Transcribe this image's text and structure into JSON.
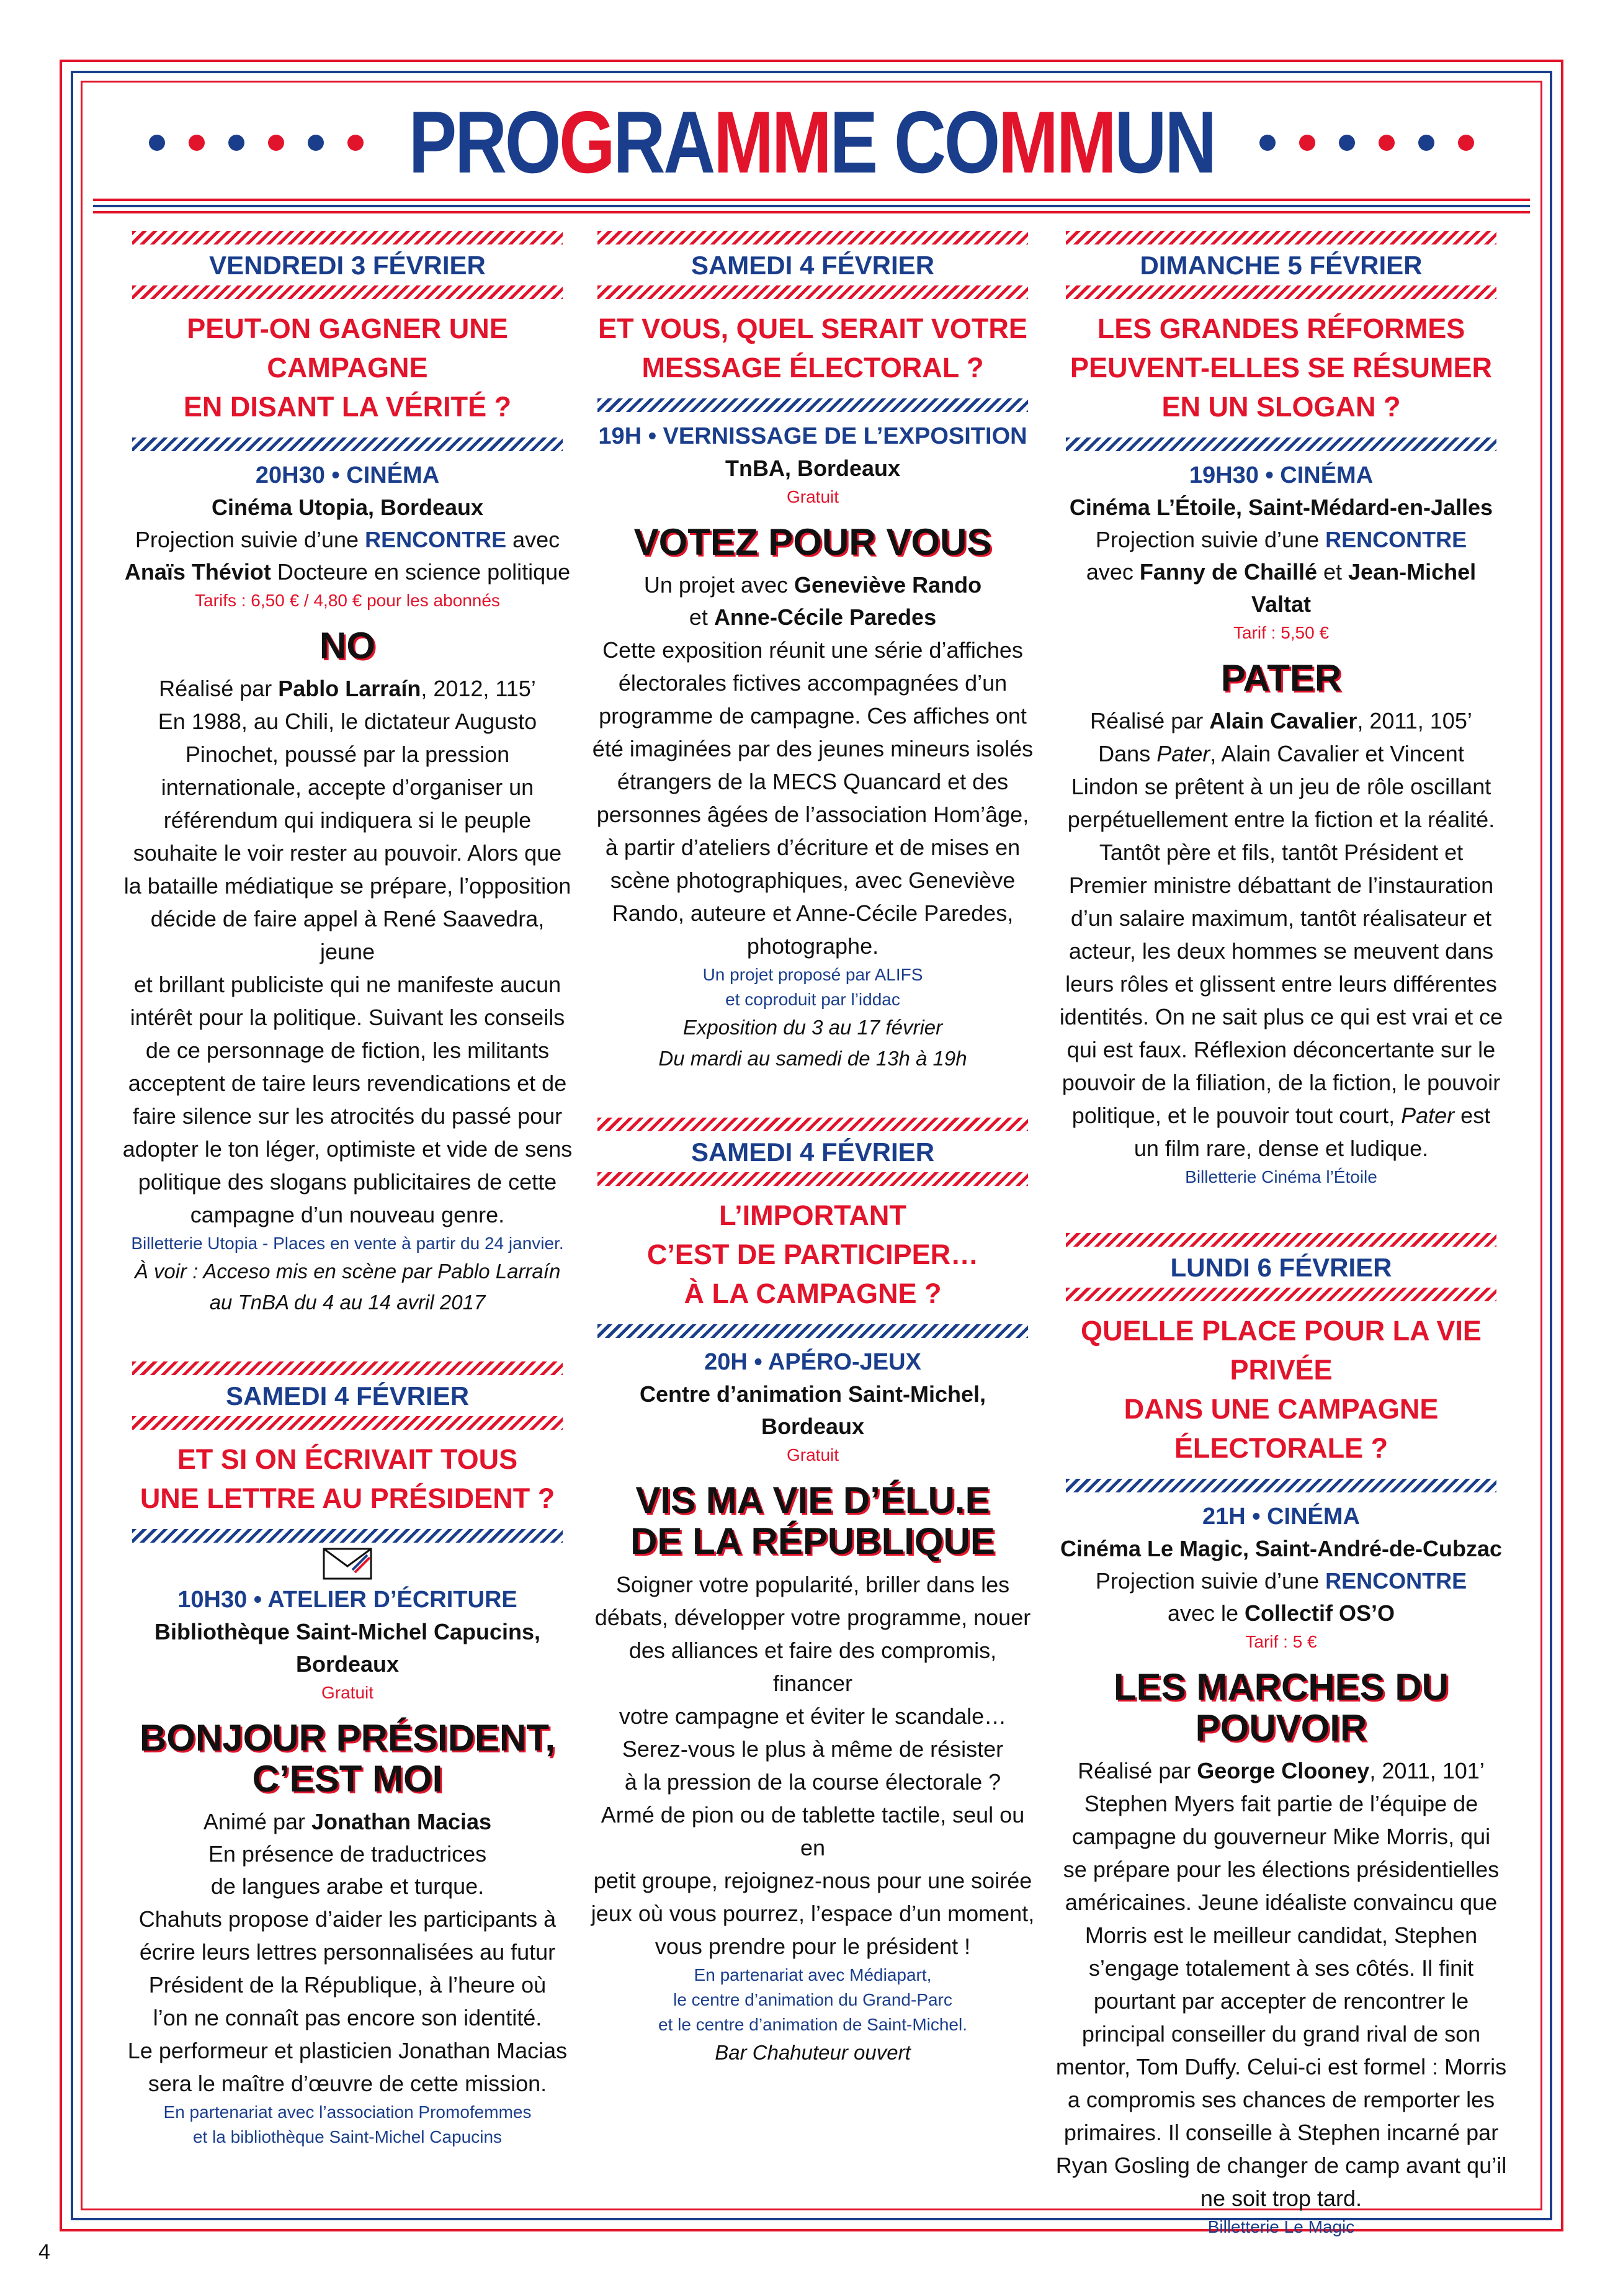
{
  "title": {
    "p1": "PRO",
    "p2": "G",
    "p3": "RA",
    "p4": "MM",
    "p5": "E ",
    "p6": "CO",
    "p7": "MM",
    "p8": "UN"
  },
  "page_number": "4",
  "col1": {
    "e1": {
      "day": "VENDREDI 3 FÉVRIER",
      "question_l1": "PEUT-ON GAGNER UNE CAMPAGNE",
      "question_l2": "EN DISANT LA VÉRITÉ ?",
      "time": "20H30 • CINÉMA",
      "place": "Cinéma Utopia, Bordeaux",
      "l1a": "Projection suivie d’une ",
      "l1b": "RENCONTRE",
      "l1c": " avec",
      "l2a": "Anaïs Théviot",
      "l2b": " Docteure en science politique",
      "tarif": "Tarifs : 6,50 € / 4,80 € pour les abonnés",
      "film": "NO",
      "real_a": "Réalisé par ",
      "real_b": "Pablo Larraín",
      "real_c": ", 2012, 115’",
      "body": [
        "En 1988, au Chili, le dictateur Augusto",
        "Pinochet, poussé par la pression",
        "internationale, accepte d’organiser un",
        "référendum qui indiquera si le peuple",
        "souhaite le voir rester au pouvoir. Alors que",
        "la bataille médiatique se prépare, l’opposition",
        "décide de faire appel à René Saavedra, jeune",
        "et brillant publiciste qui ne manifeste aucun",
        "intérêt pour la politique. Suivant les conseils",
        "de ce personnage de fiction, les militants",
        "acceptent de taire leurs revendications et de",
        "faire silence sur les atrocités du passé pour",
        "adopter le ton léger, optimiste et vide de sens",
        "politique des slogans publicitaires de cette",
        "campagne d’un nouveau genre."
      ],
      "billet": "Billetterie Utopia - Places en vente à partir du 24 janvier.",
      "voir1": "À voir : Acceso mis en scène par Pablo Larraín",
      "voir2": "au TnBA du 4 au 14 avril 2017"
    },
    "e2": {
      "day": "SAMEDI 4 FÉVRIER",
      "question_l1": "ET SI ON ÉCRIVAIT TOUS",
      "question_l2": "UNE LETTRE AU PRÉSIDENT ?",
      "envelope_icon": "envelope-icon",
      "time": "10H30 • ATELIER D’ÉCRITURE",
      "place1": "Bibliothèque Saint-Michel Capucins,",
      "place2": "Bordeaux",
      "tarif": "Gratuit",
      "film1": "BONJOUR PRÉSIDENT,",
      "film2": "C’EST MOI",
      "anim_a": "Animé par ",
      "anim_b": "Jonathan Macias",
      "pres1": "En présence de traductrices",
      "pres2": "de langues arabe et turque.",
      "body": [
        "Chahuts propose d’aider les participants à",
        "écrire leurs lettres personnalisées au futur",
        "Président de la République, à l’heure où",
        "l’on ne connaît pas encore son identité.",
        "Le performeur et plasticien Jonathan Macias",
        "sera le maître d’œuvre de cette mission."
      ],
      "part1": "En partenariat avec l’association Promofemmes",
      "part2": "et la bibliothèque Saint-Michel Capucins"
    }
  },
  "col2": {
    "e1": {
      "day": "SAMEDI 4 FÉVRIER",
      "question_l1": "ET VOUS, QUEL SERAIT VOTRE",
      "question_l2": "MESSAGE ÉLECTORAL ?",
      "time": "19H • VERNISSAGE DE L’EXPOSITION",
      "place": "TnBA, Bordeaux",
      "tarif": "Gratuit",
      "film": "VOTEZ POUR VOUS",
      "proj_a": "Un projet avec ",
      "proj_b": "Geneviève Rando",
      "proj2_a": "et ",
      "proj2_b": "Anne-Cécile Paredes",
      "body": [
        "Cette exposition réunit une série d’affiches",
        "électorales fictives accompagnées d’un",
        "programme de campagne. Ces affiches ont",
        "été imaginées par des jeunes mineurs isolés",
        "étrangers de la MECS Quancard et des",
        "personnes âgées de l’association Hom’âge,",
        "à partir d’ateliers d’écriture et de mises en",
        "scène photographiques, avec Geneviève",
        "Rando, auteure et Anne-Cécile Paredes,",
        "photographe."
      ],
      "part1": "Un projet proposé par ALIFS",
      "part2": "et coproduit par l’iddac",
      "expo1": "Exposition du 3 au 17 février",
      "expo2": "Du mardi au samedi de 13h à 19h"
    },
    "e2": {
      "day": "SAMEDI 4 FÉVRIER",
      "question_l1": "L’IMPORTANT",
      "question_l2": "C’EST DE PARTICIPER…",
      "question_l3": "À LA CAMPAGNE ?",
      "time": "20H • APÉRO-JEUX",
      "place1": "Centre d’animation Saint-Michel,",
      "place2": "Bordeaux",
      "tarif": "Gratuit",
      "film1": "VIS MA VIE D’ÉLU.E",
      "film2": "DE LA RÉPUBLIQUE",
      "body": [
        "Soigner votre popularité, briller dans les",
        "débats, développer votre programme, nouer",
        "des alliances et faire des compromis, financer",
        "votre campagne et éviter le scandale…",
        "Serez-vous le plus à même de résister",
        "à la pression de la course électorale ?",
        "Armé de pion ou de tablette tactile, seul ou en",
        "petit groupe, rejoignez-nous pour une soirée",
        "jeux où vous pourrez, l’espace d’un moment,",
        "vous prendre pour le président !"
      ],
      "part1": "En partenariat avec Médiapart,",
      "part2": "le centre d’animation du Grand-Parc",
      "part3": "et le centre d’animation de Saint-Michel.",
      "bar": "Bar Chahuteur ouvert"
    }
  },
  "col3": {
    "e1": {
      "day": "DIMANCHE 5 FÉVRIER",
      "question_l1": "LES GRANDES RÉFORMES",
      "question_l2": "PEUVENT-ELLES SE RÉSUMER",
      "question_l3": "EN UN SLOGAN ?",
      "time": "19H30 • CINÉMA",
      "place": "Cinéma L’Étoile, Saint-Médard-en-Jalles",
      "l1a": "Projection suivie d’une ",
      "l1b": "RENCONTRE",
      "l2a": "avec ",
      "l2b": "Fanny de Chaillé",
      "l2c": " et ",
      "l2d": "Jean-Michel Valtat",
      "tarif": "Tarif : 5,50 €",
      "film": "PATER",
      "real_a": "Réalisé par ",
      "real_b": "Alain Cavalier",
      "real_c": ", 2011, 105’",
      "body1a": "Dans ",
      "body1b": "Pater",
      "body1c": ", Alain Cavalier et Vincent",
      "body": [
        "Lindon se prêtent à un jeu de rôle oscillant",
        "perpétuellement entre la fiction et la réalité.",
        "Tantôt père et fils, tantôt Président et",
        "Premier ministre débattant de l’instauration",
        "d’un salaire maximum, tantôt réalisateur et",
        "acteur, les deux hommes se meuvent dans",
        "leurs rôles et glissent entre leurs différentes",
        "identités. On ne sait plus ce qui est vrai et ce",
        "qui est faux. Réflexion déconcertante sur le",
        "pouvoir de la filiation, de la fiction, le pouvoir"
      ],
      "body_last_a": "politique, et le pouvoir tout court, ",
      "body_last_b": "Pater",
      "body_last_c": " est",
      "body_end": "un film rare, dense et ludique.",
      "billet": "Billetterie Cinéma l’Étoile"
    },
    "e2": {
      "day": "LUNDI 6 FÉVRIER",
      "question_l1": "QUELLE PLACE POUR LA VIE PRIVÉE",
      "question_l2": "DANS UNE CAMPAGNE ÉLECTORALE ?",
      "time": "21H • CINÉMA",
      "place": "Cinéma Le Magic, Saint-André-de-Cubzac",
      "l1a": "Projection suivie d’une ",
      "l1b": "RENCONTRE",
      "l2a": "avec le ",
      "l2b": "Collectif OS’O",
      "tarif": "Tarif : 5 €",
      "film": "LES MARCHES DU POUVOIR",
      "real_a": "Réalisé par ",
      "real_b": "George Clooney",
      "real_c": ", 2011, 101’",
      "body": [
        "Stephen Myers fait partie de l’équipe de",
        "campagne du gouverneur Mike Morris, qui",
        "se prépare pour les élections présidentielles",
        "américaines. Jeune idéaliste convaincu que",
        "Morris est le meilleur candidat, Stephen",
        "s’engage totalement à ses côtés. Il finit",
        "pourtant par accepter de rencontrer le",
        "principal conseiller du grand rival de son",
        "mentor, Tom Duffy. Celui-ci est formel : Morris",
        "a compromis ses chances de remporter les",
        "primaires. Il conseille à Stephen incarné par",
        "Ryan Gosling de changer de camp avant qu’il",
        "ne soit trop tard."
      ],
      "billet": "Billetterie Le Magic"
    }
  }
}
